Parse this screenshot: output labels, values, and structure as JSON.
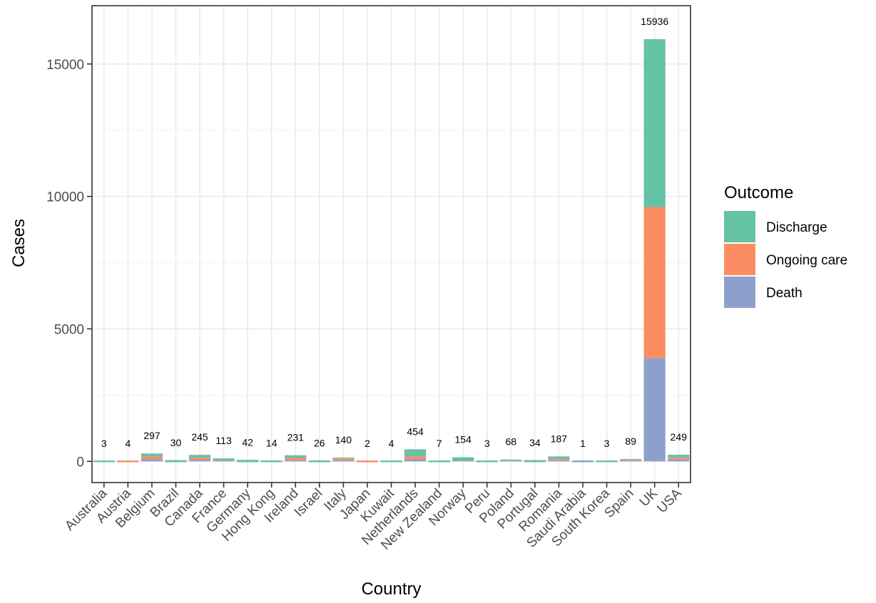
{
  "chart_data": {
    "type": "bar",
    "stacked": true,
    "xlabel": "Country",
    "ylabel": "Cases",
    "ylim": [
      -800,
      17200
    ],
    "yticks": [
      0,
      5000,
      10000,
      15000
    ],
    "grid": true,
    "legend_position": "right",
    "legend_title": "Outcome",
    "categories": [
      "Australia",
      "Austria",
      "Belgium",
      "Brazil",
      "Canada",
      "France",
      "Germany",
      "Hong Kong",
      "Ireland",
      "Israel",
      "Italy",
      "Japan",
      "Kuwait",
      "Netherlands",
      "New Zealand",
      "Norway",
      "Peru",
      "Poland",
      "Portugal",
      "Romania",
      "Saudi Arabia",
      "South Korea",
      "Spain",
      "UK",
      "USA"
    ],
    "totals": [
      3,
      4,
      297,
      30,
      245,
      113,
      42,
      14,
      231,
      26,
      140,
      2,
      4,
      454,
      7,
      154,
      3,
      68,
      34,
      187,
      1,
      3,
      89,
      15936,
      249
    ],
    "total_labels": [
      "3",
      "4",
      "297",
      "30",
      "245",
      "113",
      "42",
      "14",
      "231",
      "26",
      "140",
      "2",
      "4",
      "454",
      "7",
      "154",
      "3",
      "68",
      "34",
      "187",
      "1",
      "3",
      "89",
      "15936",
      "249"
    ],
    "series": [
      {
        "name": "Death",
        "color": "#8DA0CB",
        "values": [
          1,
          0,
          75,
          10,
          60,
          15,
          10,
          2,
          50,
          6,
          45,
          0,
          1,
          90,
          2,
          20,
          1,
          15,
          10,
          40,
          1,
          0,
          30,
          3900,
          80
        ]
      },
      {
        "name": "Ongoing care",
        "color": "#FC8D62",
        "values": [
          0,
          4,
          110,
          15,
          85,
          20,
          25,
          4,
          90,
          10,
          60,
          2,
          1,
          104,
          2,
          10,
          0,
          15,
          18,
          50,
          0,
          1,
          29,
          5700,
          70
        ]
      },
      {
        "name": "Discharge",
        "color": "#66C2A5",
        "values": [
          2,
          0,
          112,
          5,
          100,
          78,
          7,
          8,
          91,
          10,
          35,
          0,
          2,
          260,
          3,
          124,
          2,
          38,
          6,
          97,
          0,
          2,
          30,
          6336,
          99
        ]
      }
    ],
    "legend_order": [
      "Discharge",
      "Ongoing care",
      "Death"
    ]
  }
}
